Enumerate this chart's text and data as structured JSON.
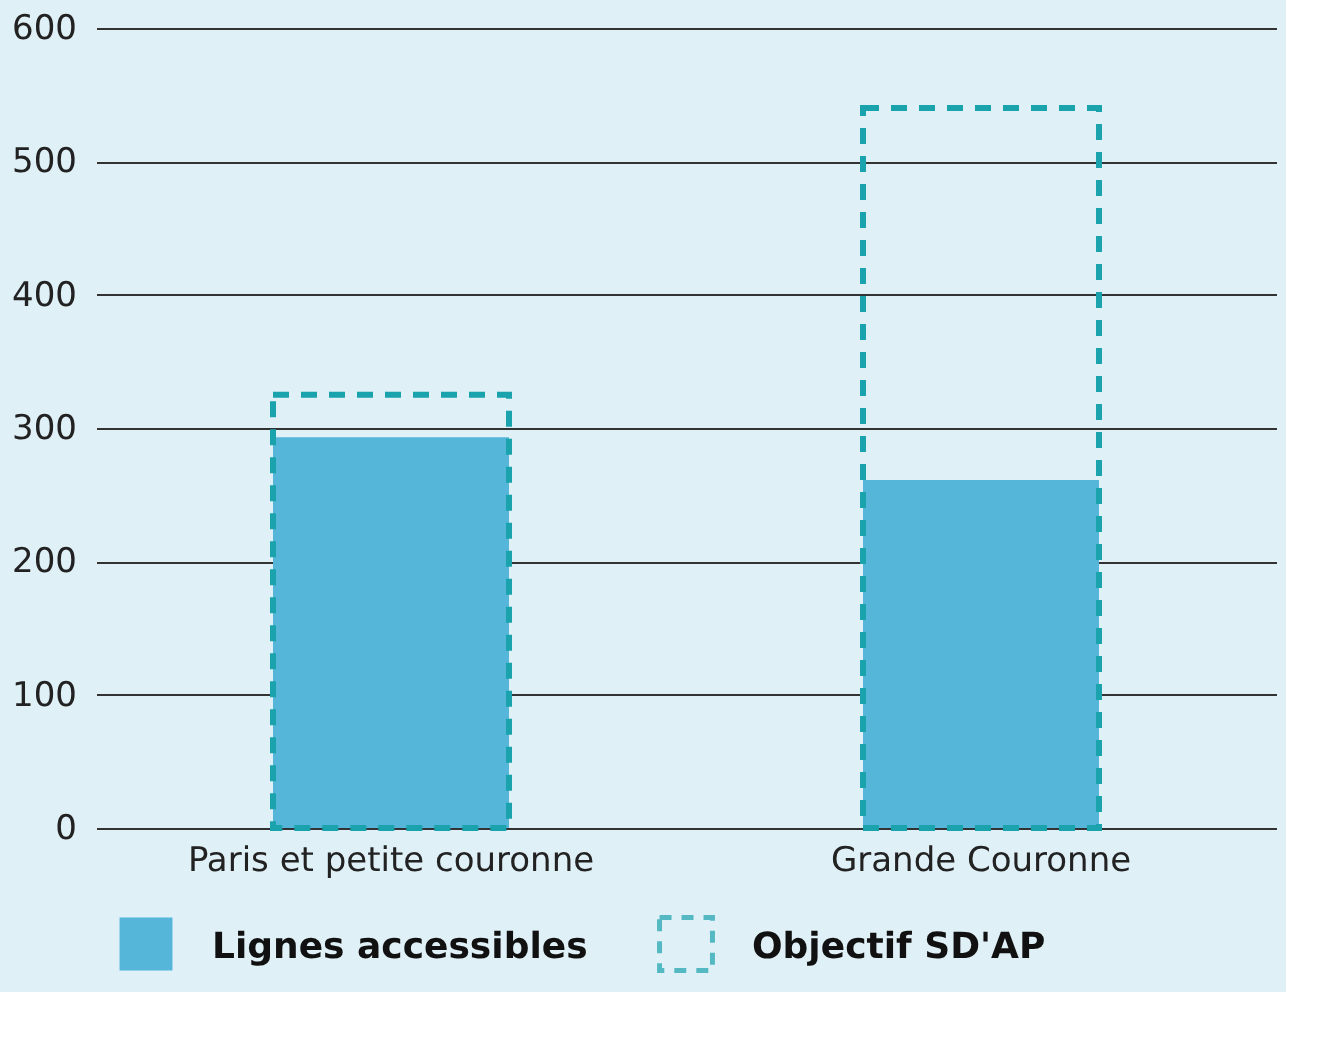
{
  "chart_data": {
    "type": "bar",
    "categories": [
      "Paris et petite couronne",
      "Grande Couronne"
    ],
    "series": [
      {
        "name": "Lignes accessibles",
        "color": "#55b6d9",
        "values": [
          293,
          261
        ]
      },
      {
        "name": "Objectif SD'AP",
        "color": "#1aa3ad",
        "values": [
          325,
          540
        ],
        "line_style": "dashed"
      }
    ],
    "ylim": [
      0,
      600
    ],
    "yticks": [
      0,
      100,
      200,
      300,
      400,
      500,
      600
    ],
    "grid": "y",
    "legend": "bottom"
  }
}
